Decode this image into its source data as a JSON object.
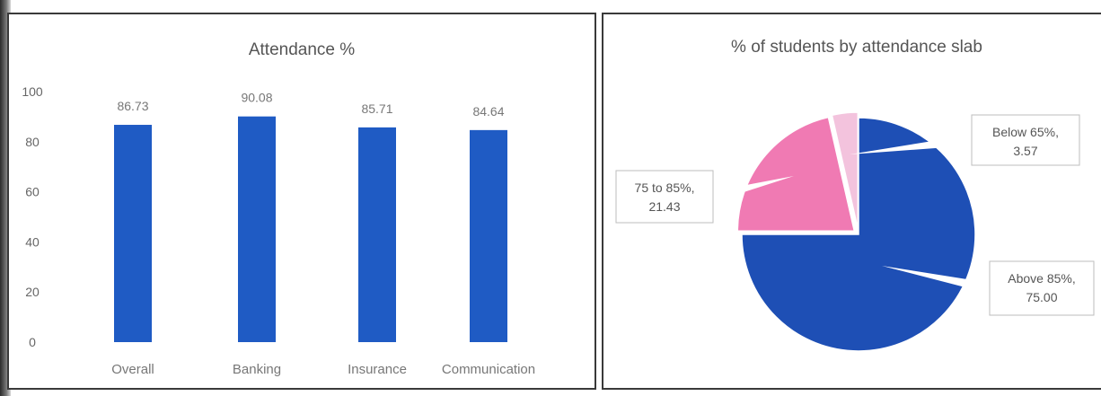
{
  "chart_data": [
    {
      "type": "bar",
      "title": "Attendance %",
      "categories": [
        "Overall",
        "Banking",
        "Insurance",
        "Communication"
      ],
      "values": [
        86.73,
        90.08,
        85.71,
        84.64
      ],
      "data_labels": [
        "86.73",
        "90.08",
        "85.71",
        "84.64"
      ],
      "ylim": [
        0,
        100
      ],
      "yticks": [
        0,
        20,
        40,
        60,
        80,
        100
      ],
      "bar_color": "#1f5bc4",
      "grid": false,
      "legend": "none"
    },
    {
      "type": "pie",
      "title": "% of students by attendance slab",
      "slices": [
        {
          "label": "Above 85%,",
          "value": 75.0,
          "value_label": "75.00",
          "color": "#1e4fb5"
        },
        {
          "label": "75 to 85%,",
          "value": 21.43,
          "value_label": "21.43",
          "color": "#f07ab3"
        },
        {
          "label": "Below 65%,",
          "value": 3.57,
          "value_label": "3.57",
          "color": "#f3c3dd"
        }
      ],
      "legend": "none"
    }
  ]
}
